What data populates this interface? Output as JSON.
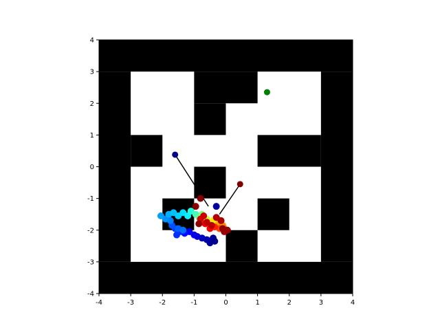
{
  "chart_data": {
    "type": "scatter",
    "title": "",
    "xlabel": "",
    "ylabel": "",
    "xlim": [
      -4,
      4
    ],
    "ylim": [
      -4,
      4
    ],
    "grid": false,
    "x_ticks": [
      "-4",
      "-3",
      "-2",
      "-1",
      "0",
      "1",
      "2",
      "3",
      "4"
    ],
    "y_ticks": [
      "-4",
      "-3",
      "-2",
      "-1",
      "0",
      "1",
      "2",
      "3",
      "4"
    ],
    "maze_color": "#000000",
    "walls": [
      {
        "x0": -4,
        "x1": 4,
        "y0": 3,
        "y1": 4
      },
      {
        "x0": -4,
        "x1": 4,
        "y0": -4,
        "y1": -3
      },
      {
        "x0": -4,
        "x1": -3,
        "y0": -3,
        "y1": 3
      },
      {
        "x0": 3,
        "x1": 4,
        "y0": -3,
        "y1": 3
      },
      {
        "x0": -1,
        "x1": 1,
        "y0": 2,
        "y1": 3
      },
      {
        "x0": -1,
        "x1": 0,
        "y0": 1,
        "y1": 2
      },
      {
        "x0": -3,
        "x1": -2,
        "y0": 0,
        "y1": 1
      },
      {
        "x0": 1,
        "x1": 3,
        "y0": 0,
        "y1": 1
      },
      {
        "x0": -1,
        "x1": 0,
        "y0": -1,
        "y1": 0
      },
      {
        "x0": -2,
        "x1": -1,
        "y0": -2,
        "y1": -1
      },
      {
        "x0": 1,
        "x1": 2,
        "y0": -2,
        "y1": -1
      },
      {
        "x0": 0,
        "x1": 1,
        "y0": -3,
        "y1": -2
      }
    ],
    "goal": {
      "x": 1.3,
      "y": 2.35,
      "color": "#008000"
    },
    "rays": [
      {
        "x0": -1.6,
        "y0": 0.38,
        "x1": -0.55,
        "y1": -1.25
      },
      {
        "x0": 0.45,
        "y0": -0.55,
        "x1": -0.2,
        "y1": -1.5
      }
    ],
    "trajectory": [
      {
        "x": -0.35,
        "y": -2.35,
        "color": "#00008b"
      },
      {
        "x": -0.4,
        "y": -2.25,
        "color": "#00008f"
      },
      {
        "x": -0.5,
        "y": -2.4,
        "color": "#000096"
      },
      {
        "x": -0.3,
        "y": -1.25,
        "color": "#00009f"
      },
      {
        "x": -0.6,
        "y": -2.3,
        "color": "#0000aa"
      },
      {
        "x": -0.75,
        "y": -2.25,
        "color": "#0000bf"
      },
      {
        "x": -0.9,
        "y": -2.2,
        "color": "#0000d4"
      },
      {
        "x": -1.0,
        "y": -2.15,
        "color": "#0000e8"
      },
      {
        "x": -1.15,
        "y": -2.05,
        "color": "#0000ff"
      },
      {
        "x": -1.3,
        "y": -2.1,
        "color": "#0010ff"
      },
      {
        "x": -1.45,
        "y": -2.05,
        "color": "#0020ff"
      },
      {
        "x": -1.55,
        "y": -2.15,
        "color": "#0030ff"
      },
      {
        "x": -1.6,
        "y": -1.95,
        "color": "#0040ff"
      },
      {
        "x": -1.7,
        "y": -1.85,
        "color": "#0050ff"
      },
      {
        "x": -1.5,
        "y": -1.95,
        "color": "#0060ff"
      },
      {
        "x": -1.35,
        "y": -2.0,
        "color": "#0070ff"
      },
      {
        "x": -1.75,
        "y": -1.7,
        "color": "#0080ff"
      },
      {
        "x": -1.9,
        "y": -1.65,
        "color": "#0090ff"
      },
      {
        "x": -2.05,
        "y": -1.55,
        "color": "#00a0ff"
      },
      {
        "x": -1.8,
        "y": -1.5,
        "color": "#00b0ff"
      },
      {
        "x": -1.65,
        "y": -1.45,
        "color": "#00c0ff"
      },
      {
        "x": -1.5,
        "y": -1.55,
        "color": "#00d0ff"
      },
      {
        "x": -1.35,
        "y": -1.45,
        "color": "#00e0ff"
      },
      {
        "x": -1.2,
        "y": -1.55,
        "color": "#10f0ff"
      },
      {
        "x": -1.1,
        "y": -1.4,
        "color": "#22ffdd"
      },
      {
        "x": -0.95,
        "y": -1.5,
        "color": "#44ffbb"
      },
      {
        "x": -0.85,
        "y": -1.6,
        "color": "#66ff99"
      },
      {
        "x": -0.75,
        "y": -1.5,
        "color": "#88ff77"
      },
      {
        "x": -0.7,
        "y": -1.7,
        "color": "#aaff55"
      },
      {
        "x": -0.6,
        "y": -1.65,
        "color": "#ccff33"
      },
      {
        "x": -0.5,
        "y": -1.8,
        "color": "#eeff11"
      },
      {
        "x": -0.4,
        "y": -1.7,
        "color": "#ffee00"
      },
      {
        "x": -0.3,
        "y": -1.85,
        "color": "#ffcc00"
      },
      {
        "x": -0.2,
        "y": -1.75,
        "color": "#ffaa00"
      },
      {
        "x": -0.1,
        "y": -1.85,
        "color": "#ff8800"
      },
      {
        "x": -0.05,
        "y": -1.95,
        "color": "#ff6600"
      },
      {
        "x": -0.2,
        "y": -1.95,
        "color": "#ff4400"
      },
      {
        "x": -0.35,
        "y": -1.9,
        "color": "#ff2200"
      },
      {
        "x": -0.5,
        "y": -1.95,
        "color": "#ff0000"
      },
      {
        "x": -0.65,
        "y": -1.8,
        "color": "#ee0000"
      },
      {
        "x": -0.8,
        "y": -1.65,
        "color": "#dd0000"
      },
      {
        "x": -0.7,
        "y": -1.55,
        "color": "#cc0000"
      },
      {
        "x": -0.6,
        "y": -1.75,
        "color": "#c00000"
      },
      {
        "x": -0.45,
        "y": -1.85,
        "color": "#b80000"
      },
      {
        "x": -0.3,
        "y": -1.6,
        "color": "#b00000"
      },
      {
        "x": -0.15,
        "y": -1.7,
        "color": "#a80000"
      },
      {
        "x": -0.05,
        "y": -2.05,
        "color": "#a00000"
      },
      {
        "x": 0.05,
        "y": -2.0,
        "color": "#990000"
      },
      {
        "x": -0.1,
        "y": -1.95,
        "color": "#920000"
      },
      {
        "x": -0.85,
        "y": -1.8,
        "color": "#8c0000"
      },
      {
        "x": -0.95,
        "y": -1.25,
        "color": "#880000"
      },
      {
        "x": -0.8,
        "y": -1.0,
        "color": "#850000"
      }
    ],
    "ray_start_points": [
      {
        "x": -1.6,
        "y": 0.38,
        "color": "#00008b"
      },
      {
        "x": 0.45,
        "y": -0.55,
        "color": "#800000"
      }
    ]
  }
}
